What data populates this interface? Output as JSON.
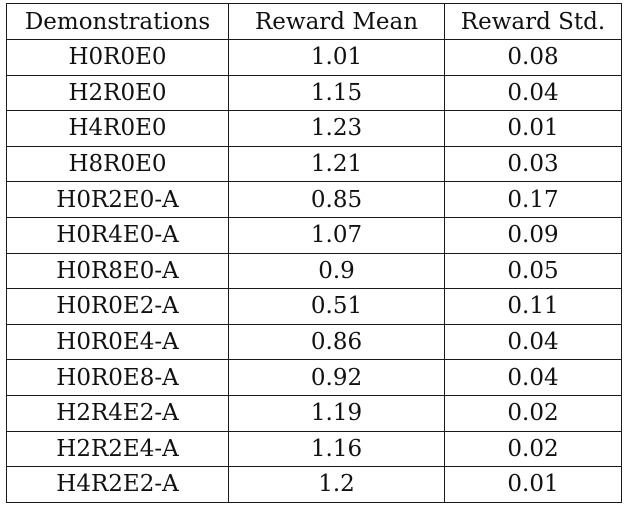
{
  "table": {
    "headers": [
      "Demonstrations",
      "Reward Mean",
      "Reward Std."
    ],
    "rows": [
      [
        "H0R0E0",
        "1.01",
        "0.08"
      ],
      [
        "H2R0E0",
        "1.15",
        "0.04"
      ],
      [
        "H4R0E0",
        "1.23",
        "0.01"
      ],
      [
        "H8R0E0",
        "1.21",
        "0.03"
      ],
      [
        "H0R2E0-A",
        "0.85",
        "0.17"
      ],
      [
        "H0R4E0-A",
        "1.07",
        "0.09"
      ],
      [
        "H0R8E0-A",
        "0.9",
        "0.05"
      ],
      [
        "H0R0E2-A",
        "0.51",
        "0.11"
      ],
      [
        "H0R0E4-A",
        "0.86",
        "0.04"
      ],
      [
        "H0R0E8-A",
        "0.92",
        "0.04"
      ],
      [
        "H2R4E2-A",
        "1.19",
        "0.02"
      ],
      [
        "H2R2E4-A",
        "1.16",
        "0.02"
      ],
      [
        "H4R2E2-A",
        "1.2",
        "0.01"
      ]
    ]
  }
}
